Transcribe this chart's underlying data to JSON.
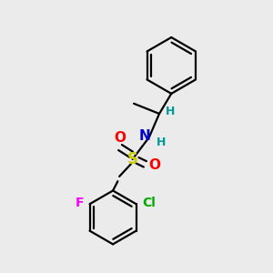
{
  "bg_color": "#ebebeb",
  "bond_color": "#000000",
  "atom_colors": {
    "N": "#0000cc",
    "S": "#cccc00",
    "O": "#ff0000",
    "F": "#ff00ff",
    "Cl": "#00aa00",
    "H": "#009999",
    "C": "#000000"
  },
  "figsize": [
    3.0,
    3.0
  ],
  "dpi": 100
}
